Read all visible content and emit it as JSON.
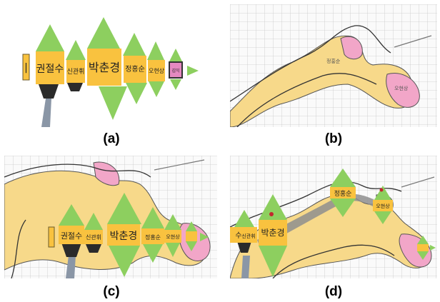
{
  "captions": {
    "a": "(a)",
    "b": "(b)",
    "c": "(c)",
    "d": "(d)"
  },
  "glyphs": {
    "a": {
      "bar": "|",
      "n1": "권절수",
      "n2": "신관휘",
      "n3": "박춘경",
      "n4": "정홍순",
      "n5": "오현상",
      "n6": "김익"
    },
    "b": {
      "n1": "정홍순",
      "n2": "오현상"
    },
    "c": {
      "n1": "권절수",
      "n2": "신관휘",
      "n3": "박춘경",
      "n4": "정홍순",
      "n5": "오현상"
    },
    "d": {
      "n1": "수",
      "n2": "신관휘",
      "n3": "박춘경",
      "n4": "정홍순",
      "n5": "오현상"
    }
  },
  "colors": {
    "triangle": "#8dcf5f",
    "box": "#f9c23f",
    "region": "#f7d98a",
    "pink": "#f2a6c8",
    "grid": "#c9c9c9",
    "boundary": "#333333",
    "pedestal": "#2b2b2b",
    "pole": "#8a96a6",
    "path": "#8e8e8e"
  }
}
